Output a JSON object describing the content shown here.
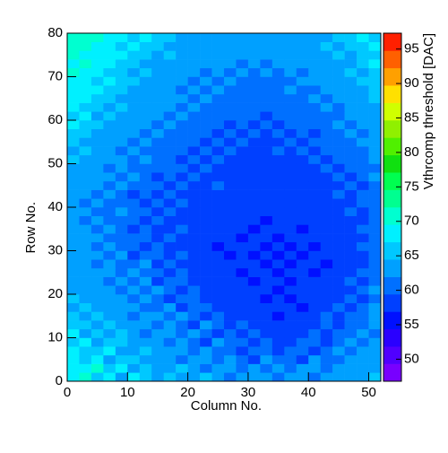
{
  "chart_data": {
    "type": "heatmap",
    "x_label": "Column No.",
    "y_label": "Row No.",
    "z_label": "Vthrcomp threshold [DAC]",
    "xlim": [
      0,
      52
    ],
    "ylim": [
      0,
      80
    ],
    "zlim": [
      46.8,
      97.3
    ],
    "xticks": [
      0,
      10,
      20,
      30,
      40,
      50
    ],
    "yticks": [
      0,
      10,
      20,
      30,
      40,
      50,
      60,
      70,
      80
    ],
    "zticks": [
      50,
      55,
      60,
      65,
      70,
      75,
      80,
      85,
      90,
      95
    ],
    "palette": [
      "#7800ff",
      "#5000ff",
      "#2a00ff",
      "#0010ff",
      "#0040ff",
      "#0070ff",
      "#00a0ff",
      "#00c8ff",
      "#00f0ff",
      "#00ffd0",
      "#00ff90",
      "#00ff50",
      "#10e010",
      "#50f000",
      "#90f000",
      "#d0ff00",
      "#ffe000",
      "#ffa000",
      "#ff6000",
      "#ff2000"
    ],
    "z": [
      [
        68,
        70,
        66,
        69,
        64,
        67,
        65,
        63,
        66,
        64,
        62,
        65,
        63,
        61,
        64,
        62,
        63,
        60,
        62,
        64,
        61,
        63,
        62,
        64,
        62,
        65
      ],
      [
        69,
        67,
        70,
        65,
        68,
        63,
        66,
        64,
        62,
        65,
        63,
        61,
        62,
        64,
        60,
        63,
        61,
        62,
        60,
        63,
        62,
        61,
        64,
        62,
        63,
        64
      ],
      [
        67,
        66,
        68,
        64,
        66,
        65,
        62,
        64,
        63,
        61,
        64,
        62,
        60,
        62,
        61,
        59,
        62,
        60,
        61,
        59,
        62,
        60,
        61,
        63,
        62,
        63
      ],
      [
        68,
        65,
        66,
        67,
        63,
        64,
        65,
        62,
        63,
        62,
        60,
        63,
        61,
        60,
        59,
        61,
        60,
        58,
        60,
        61,
        59,
        61,
        62,
        60,
        62,
        64
      ],
      [
        66,
        67,
        64,
        65,
        66,
        62,
        63,
        64,
        61,
        63,
        61,
        59,
        62,
        60,
        61,
        58,
        60,
        59,
        58,
        60,
        61,
        59,
        60,
        62,
        61,
        62
      ],
      [
        67,
        64,
        66,
        63,
        65,
        64,
        61,
        63,
        62,
        60,
        62,
        61,
        59,
        61,
        58,
        60,
        58,
        59,
        57,
        59,
        60,
        58,
        61,
        60,
        62,
        61
      ],
      [
        65,
        66,
        63,
        65,
        62,
        64,
        63,
        61,
        62,
        61,
        59,
        62,
        60,
        58,
        60,
        59,
        57,
        58,
        59,
        57,
        59,
        60,
        59,
        61,
        60,
        63
      ],
      [
        66,
        64,
        65,
        62,
        64,
        61,
        63,
        62,
        60,
        62,
        61,
        58,
        60,
        59,
        57,
        59,
        58,
        56,
        58,
        59,
        58,
        60,
        58,
        60,
        61,
        62
      ],
      [
        64,
        65,
        63,
        64,
        62,
        63,
        61,
        60,
        62,
        59,
        61,
        60,
        58,
        59,
        58,
        57,
        59,
        57,
        58,
        56,
        58,
        59,
        60,
        59,
        61,
        62
      ],
      [
        65,
        63,
        64,
        62,
        63,
        61,
        62,
        61,
        59,
        61,
        60,
        59,
        58,
        57,
        59,
        58,
        56,
        58,
        56,
        58,
        57,
        59,
        58,
        60,
        59,
        61
      ],
      [
        64,
        63,
        62,
        64,
        61,
        62,
        60,
        62,
        60,
        59,
        61,
        58,
        59,
        58,
        57,
        58,
        57,
        56,
        57,
        58,
        57,
        58,
        59,
        58,
        60,
        62
      ],
      [
        63,
        64,
        62,
        61,
        63,
        60,
        62,
        59,
        61,
        60,
        58,
        59,
        57,
        59,
        58,
        56,
        58,
        57,
        56,
        57,
        58,
        57,
        59,
        60,
        59,
        61
      ],
      [
        64,
        62,
        63,
        62,
        60,
        62,
        61,
        60,
        59,
        60,
        59,
        57,
        58,
        57,
        56,
        58,
        57,
        56,
        58,
        57,
        56,
        58,
        57,
        59,
        60,
        61
      ],
      [
        63,
        63,
        61,
        62,
        61,
        60,
        62,
        59,
        60,
        58,
        59,
        58,
        57,
        58,
        57,
        57,
        56,
        57,
        56,
        58,
        57,
        56,
        58,
        58,
        59,
        60
      ],
      [
        64,
        62,
        62,
        61,
        62,
        59,
        60,
        61,
        58,
        60,
        57,
        59,
        58,
        56,
        58,
        56,
        57,
        56,
        57,
        56,
        58,
        57,
        57,
        59,
        58,
        61
      ],
      [
        62,
        63,
        61,
        62,
        60,
        61,
        59,
        60,
        59,
        58,
        59,
        58,
        56,
        58,
        57,
        57,
        56,
        58,
        56,
        57,
        56,
        58,
        58,
        57,
        60,
        60
      ],
      [
        63,
        62,
        62,
        60,
        61,
        60,
        60,
        58,
        60,
        59,
        57,
        58,
        58,
        57,
        56,
        58,
        57,
        56,
        57,
        58,
        57,
        57,
        59,
        58,
        59,
        61
      ],
      [
        62,
        63,
        60,
        62,
        61,
        59,
        61,
        59,
        58,
        60,
        58,
        57,
        59,
        57,
        58,
        56,
        58,
        57,
        58,
        56,
        58,
        58,
        57,
        59,
        60,
        60
      ],
      [
        63,
        61,
        62,
        61,
        60,
        61,
        59,
        60,
        59,
        58,
        59,
        58,
        57,
        58,
        57,
        58,
        56,
        58,
        57,
        57,
        58,
        57,
        59,
        58,
        59,
        61
      ],
      [
        62,
        62,
        61,
        60,
        62,
        60,
        60,
        59,
        60,
        59,
        58,
        59,
        58,
        57,
        58,
        57,
        58,
        57,
        58,
        58,
        57,
        59,
        58,
        60,
        59,
        60
      ],
      [
        63,
        61,
        62,
        61,
        60,
        61,
        59,
        60,
        58,
        60,
        59,
        57,
        59,
        58,
        58,
        57,
        57,
        58,
        57,
        59,
        58,
        58,
        59,
        59,
        60,
        61
      ],
      [
        62,
        63,
        61,
        62,
        61,
        59,
        61,
        59,
        60,
        59,
        58,
        59,
        58,
        59,
        57,
        58,
        58,
        57,
        58,
        58,
        59,
        58,
        60,
        59,
        60,
        60
      ],
      [
        64,
        62,
        62,
        61,
        62,
        60,
        60,
        61,
        59,
        60,
        59,
        58,
        60,
        58,
        59,
        58,
        57,
        59,
        58,
        59,
        58,
        59,
        59,
        60,
        59,
        61
      ],
      [
        63,
        64,
        62,
        62,
        60,
        62,
        61,
        59,
        61,
        59,
        60,
        59,
        58,
        59,
        58,
        59,
        58,
        58,
        59,
        58,
        59,
        59,
        60,
        59,
        60,
        62
      ],
      [
        64,
        63,
        63,
        61,
        62,
        61,
        60,
        61,
        60,
        60,
        59,
        60,
        59,
        58,
        59,
        58,
        59,
        59,
        58,
        59,
        58,
        60,
        59,
        60,
        61,
        61
      ],
      [
        65,
        63,
        64,
        62,
        62,
        61,
        62,
        60,
        61,
        59,
        60,
        59,
        60,
        59,
        58,
        59,
        59,
        58,
        59,
        58,
        60,
        59,
        60,
        61,
        60,
        62
      ],
      [
        64,
        65,
        63,
        63,
        61,
        62,
        61,
        61,
        60,
        61,
        59,
        60,
        59,
        60,
        59,
        58,
        59,
        60,
        58,
        60,
        59,
        60,
        60,
        61,
        61,
        62
      ],
      [
        66,
        64,
        64,
        62,
        63,
        61,
        62,
        60,
        61,
        60,
        61,
        59,
        60,
        59,
        60,
        59,
        58,
        59,
        60,
        59,
        60,
        60,
        61,
        60,
        62,
        62
      ],
      [
        65,
        66,
        63,
        64,
        62,
        63,
        61,
        62,
        60,
        61,
        60,
        60,
        59,
        60,
        59,
        60,
        59,
        60,
        59,
        60,
        59,
        61,
        60,
        62,
        61,
        63
      ],
      [
        67,
        65,
        65,
        63,
        64,
        62,
        63,
        61,
        62,
        60,
        61,
        60,
        61,
        59,
        60,
        59,
        60,
        59,
        60,
        61,
        60,
        60,
        62,
        61,
        62,
        63
      ],
      [
        66,
        67,
        64,
        65,
        63,
        63,
        62,
        62,
        61,
        62,
        60,
        61,
        60,
        61,
        60,
        60,
        59,
        60,
        61,
        60,
        61,
        61,
        61,
        62,
        63,
        64
      ],
      [
        68,
        66,
        66,
        64,
        65,
        63,
        64,
        62,
        62,
        61,
        62,
        60,
        61,
        60,
        61,
        60,
        61,
        60,
        60,
        61,
        60,
        62,
        61,
        63,
        62,
        64
      ],
      [
        67,
        68,
        65,
        66,
        64,
        64,
        63,
        63,
        62,
        62,
        61,
        62,
        60,
        61,
        60,
        61,
        60,
        61,
        61,
        60,
        62,
        61,
        63,
        62,
        64,
        65
      ],
      [
        69,
        67,
        67,
        65,
        66,
        64,
        64,
        62,
        63,
        61,
        62,
        61,
        62,
        60,
        61,
        60,
        61,
        60,
        62,
        61,
        61,
        63,
        62,
        64,
        63,
        65
      ],
      [
        68,
        69,
        66,
        67,
        65,
        65,
        63,
        64,
        62,
        63,
        61,
        62,
        61,
        62,
        61,
        61,
        60,
        61,
        61,
        62,
        62,
        62,
        64,
        63,
        65,
        66
      ],
      [
        70,
        68,
        68,
        66,
        66,
        64,
        65,
        63,
        63,
        62,
        63,
        61,
        62,
        61,
        62,
        61,
        62,
        61,
        62,
        61,
        63,
        63,
        63,
        65,
        64,
        66
      ],
      [
        69,
        70,
        67,
        68,
        65,
        66,
        64,
        64,
        63,
        63,
        62,
        63,
        62,
        62,
        61,
        62,
        61,
        62,
        62,
        63,
        62,
        64,
        64,
        64,
        66,
        67
      ],
      [
        71,
        69,
        69,
        67,
        67,
        65,
        66,
        64,
        65,
        63,
        64,
        62,
        63,
        62,
        63,
        62,
        63,
        62,
        63,
        62,
        64,
        63,
        65,
        64,
        66,
        66
      ],
      [
        70,
        71,
        68,
        69,
        66,
        67,
        65,
        65,
        64,
        64,
        63,
        64,
        62,
        63,
        62,
        63,
        62,
        63,
        64,
        63,
        63,
        65,
        64,
        66,
        65,
        67
      ],
      [
        72,
        70,
        70,
        68,
        68,
        66,
        67,
        65,
        65,
        64,
        64,
        63,
        64,
        63,
        63,
        62,
        63,
        63,
        63,
        64,
        64,
        64,
        66,
        65,
        67,
        66
      ]
    ]
  }
}
